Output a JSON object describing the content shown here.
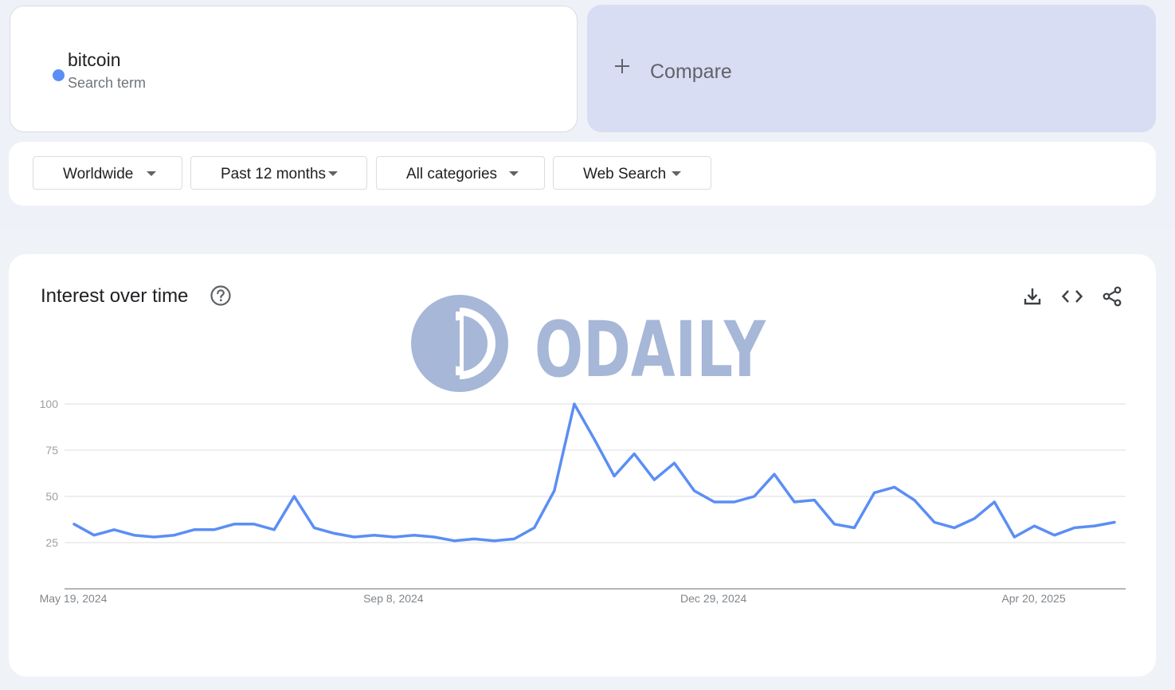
{
  "term": {
    "name": "bitcoin",
    "type": "Search term",
    "color": "#5b8ef5"
  },
  "compare": {
    "label": "Compare"
  },
  "filters": [
    {
      "label": "Worldwide"
    },
    {
      "label": "Past 12 months"
    },
    {
      "label": "All categories"
    },
    {
      "label": "Web Search"
    }
  ],
  "chart_card": {
    "title": "Interest over time",
    "icons": [
      "help-icon",
      "download-icon",
      "embed-icon",
      "share-icon"
    ],
    "watermark": "ODAILY"
  },
  "chart_data": {
    "type": "line",
    "title": "Interest over time",
    "xlabel": "",
    "ylabel": "",
    "ylim": [
      0,
      100
    ],
    "yticks": [
      25,
      50,
      75,
      100
    ],
    "x_tick_labels": [
      "May 19, 2024",
      "Sep 8, 2024",
      "Dec 29, 2024",
      "Apr 20, 2025"
    ],
    "x_tick_indices": [
      0,
      16,
      32,
      48
    ],
    "grid": true,
    "series": [
      {
        "name": "bitcoin",
        "color": "#5b8ef5",
        "values": [
          35,
          29,
          32,
          29,
          28,
          29,
          32,
          32,
          35,
          35,
          32,
          50,
          33,
          30,
          28,
          29,
          28,
          29,
          28,
          26,
          27,
          26,
          27,
          33,
          53,
          100,
          81,
          61,
          73,
          59,
          68,
          53,
          47,
          47,
          50,
          62,
          47,
          48,
          35,
          33,
          52,
          55,
          48,
          36,
          33,
          38,
          47,
          28,
          34,
          29,
          33,
          34,
          36
        ]
      }
    ]
  }
}
